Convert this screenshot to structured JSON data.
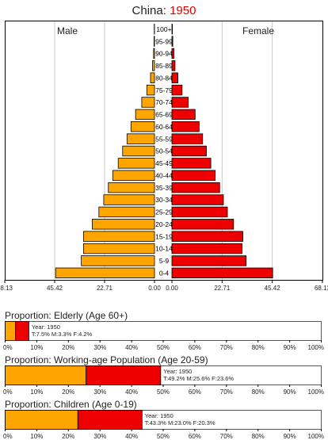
{
  "header": {
    "country": "China:",
    "year": "1950"
  },
  "colors": {
    "male": "#ffa500",
    "female": "#ee0000",
    "grid": "#c8c8c8",
    "border": "#000000"
  },
  "chart_data": [
    {
      "type": "bar",
      "subtype": "population-pyramid",
      "title": "China: 1950",
      "side_labels": {
        "male": "Male",
        "female": "Female"
      },
      "age_groups": [
        "100+",
        "95-99",
        "90-94",
        "85-89",
        "80-84",
        "75-79",
        "70-74",
        "65-69",
        "60-64",
        "55-59",
        "50-54",
        "45-49",
        "40-44",
        "35-39",
        "30-34",
        "25-29",
        "20-24",
        "15-19",
        "10-14",
        "5-9",
        "0-4"
      ],
      "series": [
        {
          "name": "Male",
          "values": [
            0.1,
            0.2,
            0.4,
            0.9,
            1.8,
            3.5,
            5.8,
            8.6,
            10.7,
            12.5,
            14.5,
            16.5,
            19.0,
            21.0,
            23.1,
            25.3,
            28.3,
            32.3,
            32.3,
            33.3,
            45.0
          ]
        },
        {
          "name": "Female",
          "values": [
            0.2,
            0.4,
            0.9,
            1.4,
            2.7,
            4.6,
            7.4,
            10.5,
            12.3,
            13.9,
            15.6,
            17.6,
            19.6,
            21.6,
            23.3,
            25.1,
            27.9,
            32.1,
            31.7,
            33.6,
            45.6
          ]
        }
      ],
      "x_ticks_left": [
        "68.13",
        "45.42",
        "22.71",
        "0.00"
      ],
      "x_ticks_right": [
        "0.00",
        "22.71",
        "45.42",
        "68.13"
      ],
      "xlim": [
        0,
        68.13
      ],
      "grid": true
    },
    {
      "type": "bar",
      "subtype": "stacked-horizontal",
      "title": "Proportion: Elderly (Age 60+)",
      "year_label": "Year: 1950",
      "values_label": "T:7.5%  M:3.3%  F:4.2%",
      "series": [
        {
          "name": "M",
          "value": 3.3
        },
        {
          "name": "F",
          "value": 4.2
        }
      ],
      "total": 7.5,
      "xlim": [
        0,
        100
      ],
      "x_ticks": [
        "0%",
        "10%",
        "20%",
        "30%",
        "40%",
        "50%",
        "60%",
        "70%",
        "80%",
        "90%",
        "100%"
      ]
    },
    {
      "type": "bar",
      "subtype": "stacked-horizontal",
      "title": "Proportion: Working-age Population (Age 20-59)",
      "year_label": "Year: 1950",
      "values_label": "T:49.2%  M:25.6%  F:23.6%",
      "series": [
        {
          "name": "M",
          "value": 25.6
        },
        {
          "name": "F",
          "value": 23.6
        }
      ],
      "total": 49.2,
      "xlim": [
        0,
        100
      ],
      "x_ticks": [
        "0%",
        "10%",
        "20%",
        "30%",
        "40%",
        "50%",
        "60%",
        "70%",
        "80%",
        "90%",
        "100%"
      ]
    },
    {
      "type": "bar",
      "subtype": "stacked-horizontal",
      "title": "Proportion: Children (Age 0-19)",
      "year_label": "Year: 1950",
      "values_label": "T:43.3%  M:23.0%  F:20.3%",
      "series": [
        {
          "name": "M",
          "value": 23.0
        },
        {
          "name": "F",
          "value": 20.3
        }
      ],
      "total": 43.3,
      "xlim": [
        0,
        100
      ],
      "x_ticks": [
        "0%",
        "10%",
        "20%",
        "30%",
        "40%",
        "50%",
        "60%",
        "70%",
        "80%",
        "90%",
        "100%"
      ]
    }
  ]
}
